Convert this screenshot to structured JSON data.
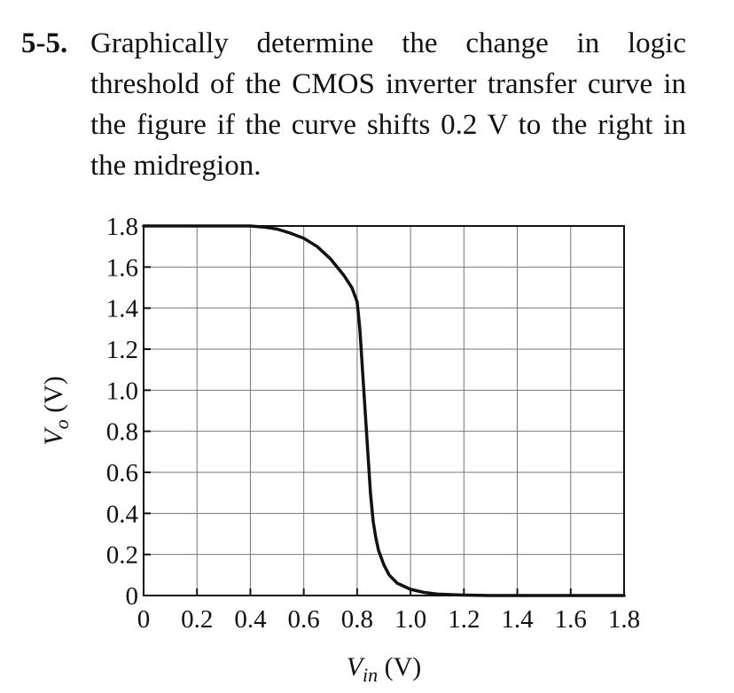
{
  "problem": {
    "number": "5-5.",
    "text": "Graphically determine the change in logic threshold of the CMOS inverter transfer curve in the figure if the curve shifts 0.2 V to the right in the midregion."
  },
  "chart_data": {
    "type": "line",
    "title": "",
    "xlabel": {
      "main": "V",
      "sub": "in",
      "unit": " (V)"
    },
    "ylabel": {
      "main": "V",
      "sub": "o",
      "unit": " (V)"
    },
    "xlim": [
      0,
      1.8
    ],
    "ylim": [
      0,
      1.8
    ],
    "grid": true,
    "x_ticks": [
      0,
      0.2,
      0.4,
      0.6,
      0.8,
      1.0,
      1.2,
      1.4,
      1.6,
      1.8
    ],
    "x_tick_labels": [
      "0",
      "0.2",
      "0.4",
      "0.6",
      "0.8",
      "1.0",
      "1.2",
      "1.4",
      "1.6",
      "1.8"
    ],
    "y_ticks": [
      0,
      0.2,
      0.4,
      0.6,
      0.8,
      1.0,
      1.2,
      1.4,
      1.6,
      1.8
    ],
    "y_tick_labels": [
      "0",
      "0.2",
      "0.4",
      "0.6",
      "0.8",
      "1.0",
      "1.2",
      "1.4",
      "1.6",
      "1.8"
    ],
    "series": [
      {
        "color": "#111111",
        "x": [
          0,
          0.2,
          0.4,
          0.45,
          0.5,
          0.55,
          0.6,
          0.65,
          0.7,
          0.75,
          0.78,
          0.8,
          0.81,
          0.82,
          0.83,
          0.84,
          0.85,
          0.86,
          0.87,
          0.88,
          0.9,
          0.92,
          0.95,
          1.0,
          1.05,
          1.1,
          1.2,
          1.3,
          1.4,
          1.6,
          1.8
        ],
        "y": [
          1.8,
          1.8,
          1.8,
          1.795,
          1.785,
          1.765,
          1.74,
          1.7,
          1.64,
          1.56,
          1.5,
          1.43,
          1.3,
          1.1,
          0.9,
          0.7,
          0.5,
          0.36,
          0.28,
          0.22,
          0.15,
          0.1,
          0.06,
          0.03,
          0.015,
          0.007,
          0.002,
          0,
          0,
          0,
          0
        ]
      }
    ]
  }
}
